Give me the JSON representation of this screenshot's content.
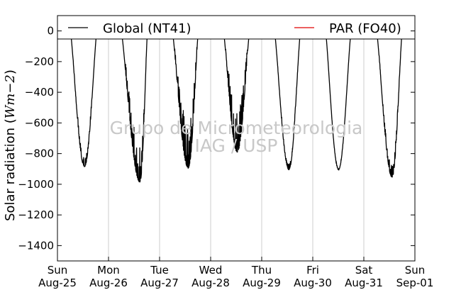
{
  "chart_data": {
    "type": "line",
    "ylabel": "Solar radiation (W m−2)",
    "ylabel_prefix": "Solar radiation (",
    "ylabel_unit": "Wm−2",
    "ylabel_suffix": ")",
    "ylim": [
      -1500,
      100
    ],
    "yticks": [
      0,
      -200,
      -400,
      -600,
      -800,
      -1000,
      -1200,
      -1400
    ],
    "ytick_labels": [
      "0",
      "−200",
      "−400",
      "−600",
      "−800",
      "−1000",
      "−1200",
      "−1400"
    ],
    "xlim": [
      "2014-08-25T00:00",
      "2014-09-01T00:00"
    ],
    "xticks": [
      {
        "day": "Sun",
        "date": "Aug-25"
      },
      {
        "day": "Mon",
        "date": "Aug-26"
      },
      {
        "day": "Tue",
        "date": "Aug-27"
      },
      {
        "day": "Wed",
        "date": "Aug-28"
      },
      {
        "day": "Thu",
        "date": "Aug-29"
      },
      {
        "day": "Fri",
        "date": "Aug-30"
      },
      {
        "day": "Sat",
        "date": "Aug-31"
      },
      {
        "day": "Sun",
        "date": "Sep-01"
      }
    ],
    "grid": "vertical",
    "legend_placement": "top",
    "watermark": [
      "Grupo de Micrometeorologia",
      "IAG / USP"
    ],
    "series": [
      {
        "name": "Global (NT41)",
        "color": "#000000",
        "days": [
          {
            "peak": -885,
            "peak_hour": 12.7,
            "start_hour": 6.1,
            "end_hour": 18.5,
            "noise": 60
          },
          {
            "peak": -985,
            "peak_hour": 14.8,
            "start_hour": 6.0,
            "end_hour": 18.3,
            "noise": 260
          },
          {
            "peak": -895,
            "peak_hour": 13.5,
            "start_hour": 6.0,
            "end_hour": 18.2,
            "noise": 300
          },
          {
            "peak": -790,
            "peak_hour": 12.5,
            "start_hour": 6.0,
            "end_hour": 18.3,
            "noise": 280
          },
          {
            "peak": -905,
            "peak_hour": 12.8,
            "start_hour": 6.0,
            "end_hour": 18.2,
            "noise": 40
          },
          {
            "peak": -905,
            "peak_hour": 12.1,
            "start_hour": 6.0,
            "end_hour": 18.0,
            "noise": 10
          },
          {
            "peak": -955,
            "peak_hour": 13.3,
            "start_hour": 6.0,
            "end_hour": 18.0,
            "noise": 80
          }
        ]
      },
      {
        "name": "PAR (FO40)",
        "color": "#e00000",
        "days": []
      }
    ]
  }
}
